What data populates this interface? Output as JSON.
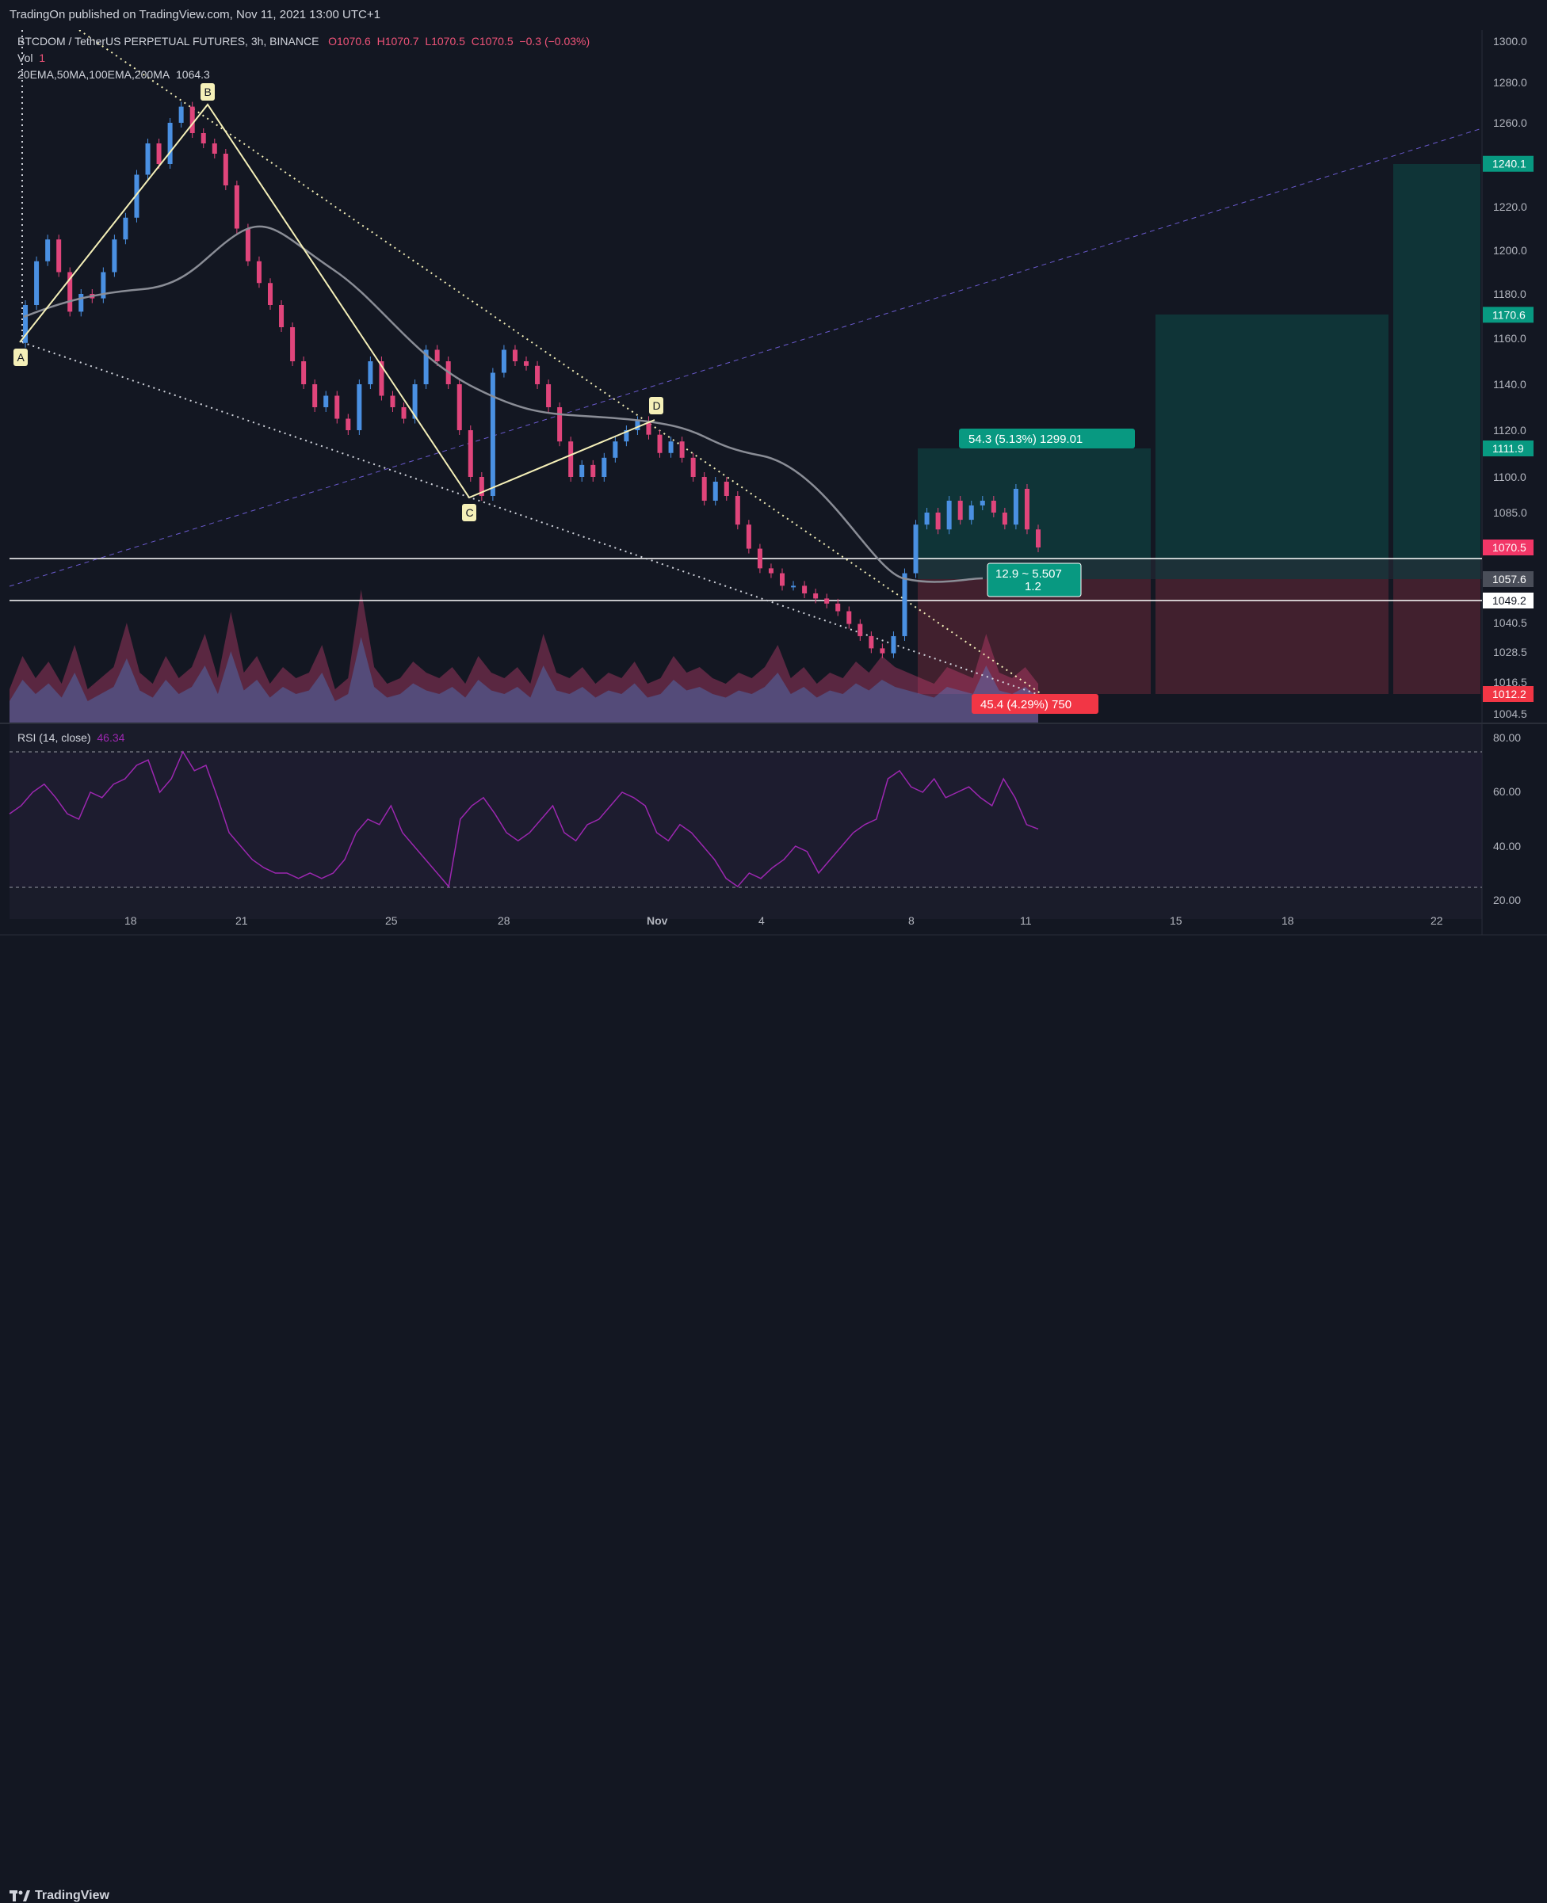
{
  "header": {
    "published": "TradingOn published on TradingView.com, Nov 11, 2021 13:00 UTC+1"
  },
  "legend": {
    "symbol": "BTCDOM / TetherUS PERPETUAL FUTURES, 3h, BINANCE",
    "open": "O1070.6",
    "high": "H1070.7",
    "low": "L1070.5",
    "close": "C1070.5",
    "change": "−0.3 (−0.03%)",
    "vol_label": "Vol",
    "vol_value": "1",
    "ma_label": "20EMA,50MA,100EMA,200MA",
    "ma_value": "1064.3",
    "rsi_label": "RSI (14, close)",
    "rsi_value": "46.34"
  },
  "annotations": {
    "pattern_points": [
      "A",
      "B",
      "C",
      "D"
    ],
    "target_label": "54.3 (5.13%) 1299.01",
    "risk_reward_line1": "12.9 ~ 5.507",
    "risk_reward_line2": "1.2",
    "stop_label": "45.4 (4.29%) 750"
  },
  "price_axis": {
    "ticks": [
      "1300.0",
      "1280.0",
      "1260.0",
      "1220.0",
      "1200.0",
      "1180.0",
      "1160.0",
      "1140.0",
      "1120.0",
      "1100.0",
      "1085.0",
      "1040.5",
      "1028.5",
      "1016.5",
      "1004.5"
    ],
    "badges": [
      {
        "label": "1240.1",
        "color": "#089981"
      },
      {
        "label": "1170.6",
        "color": "#089981"
      },
      {
        "label": "1111.9",
        "color": "#089981"
      },
      {
        "label": "1070.5",
        "color": "#f23667"
      },
      {
        "label": "1057.6",
        "color": "#4a4e59"
      },
      {
        "label": "1049.2",
        "color": "#ffffff"
      },
      {
        "label": "1012.2",
        "color": "#f23645"
      }
    ]
  },
  "rsi_axis": {
    "ticks": [
      "80.00",
      "60.00",
      "40.00",
      "20.00"
    ]
  },
  "time_axis": {
    "ticks": [
      "18",
      "21",
      "25",
      "28",
      "Nov",
      "4",
      "8",
      "11",
      "15",
      "18",
      "22"
    ]
  },
  "footer": {
    "brand": "TradingView"
  },
  "colors": {
    "background": "#131722",
    "up": "#4a90e2",
    "down": "#e0457b",
    "ma": "#8a8d96",
    "pattern": "#f5f0b8",
    "profit": "#0b3a3d",
    "loss": "#4a2230",
    "rsi": "#9c27b0"
  },
  "chart_data": {
    "type": "candlestick",
    "title": "BTCDOM / TetherUS PERPETUAL FUTURES, 3h, BINANCE",
    "price_range": [
      1004.5,
      1300.0
    ],
    "rsi_range": [
      20,
      80
    ],
    "pattern": [
      {
        "point": "A",
        "price": 1158
      },
      {
        "point": "B",
        "price": 1268
      },
      {
        "point": "C",
        "price": 1092
      },
      {
        "point": "D",
        "price": 1124
      }
    ],
    "levels": {
      "entry": 1057.6,
      "resistance": 1070.5,
      "support": 1049.2,
      "stop": 1012.2,
      "targets": [
        1111.9,
        1170.6,
        1240.1
      ]
    },
    "close_path": [
      1158,
      1175,
      1195,
      1205,
      1190,
      1172,
      1180,
      1178,
      1190,
      1205,
      1215,
      1235,
      1250,
      1240,
      1260,
      1268,
      1255,
      1250,
      1245,
      1230,
      1210,
      1195,
      1185,
      1175,
      1165,
      1150,
      1140,
      1130,
      1135,
      1125,
      1120,
      1140,
      1150,
      1135,
      1130,
      1125,
      1140,
      1155,
      1150,
      1140,
      1120,
      1100,
      1092,
      1145,
      1155,
      1150,
      1148,
      1140,
      1130,
      1115,
      1100,
      1105,
      1100,
      1108,
      1115,
      1120,
      1124,
      1118,
      1110,
      1115,
      1108,
      1100,
      1090,
      1098,
      1092,
      1080,
      1070,
      1062,
      1060,
      1055,
      1055,
      1052,
      1050,
      1048,
      1045,
      1040,
      1035,
      1030,
      1028,
      1035,
      1060,
      1080,
      1085,
      1078,
      1090,
      1082,
      1088,
      1090,
      1085,
      1080,
      1095,
      1078,
      1070.5
    ],
    "rsi_path": [
      52,
      55,
      60,
      63,
      58,
      52,
      50,
      60,
      58,
      63,
      65,
      70,
      72,
      60,
      65,
      75,
      68,
      70,
      58,
      45,
      40,
      35,
      32,
      30,
      30,
      28,
      30,
      28,
      30,
      35,
      45,
      50,
      48,
      55,
      45,
      40,
      35,
      30,
      25,
      50,
      55,
      58,
      52,
      45,
      42,
      45,
      50,
      55,
      45,
      42,
      48,
      50,
      55,
      60,
      58,
      55,
      45,
      42,
      48,
      45,
      40,
      35,
      28,
      25,
      30,
      28,
      32,
      35,
      40,
      38,
      30,
      35,
      40,
      45,
      48,
      50,
      65,
      68,
      62,
      60,
      65,
      58,
      60,
      62,
      58,
      55,
      65,
      58,
      48,
      46.34
    ],
    "volume_path": [
      30,
      60,
      40,
      55,
      35,
      70,
      30,
      40,
      50,
      90,
      45,
      35,
      60,
      40,
      50,
      80,
      40,
      100,
      45,
      60,
      35,
      50,
      40,
      45,
      70,
      30,
      40,
      120,
      50,
      35,
      40,
      55,
      45,
      40,
      50,
      35,
      60,
      45,
      40,
      50,
      35,
      80,
      45,
      40,
      50,
      35,
      45,
      40,
      55,
      35,
      40,
      60,
      45,
      50,
      40,
      35,
      45,
      40,
      50,
      70,
      40,
      50,
      35,
      45,
      40,
      55,
      45,
      60,
      50,
      45,
      40,
      35,
      50,
      45,
      40,
      80,
      45,
      40,
      50,
      35
    ]
  }
}
